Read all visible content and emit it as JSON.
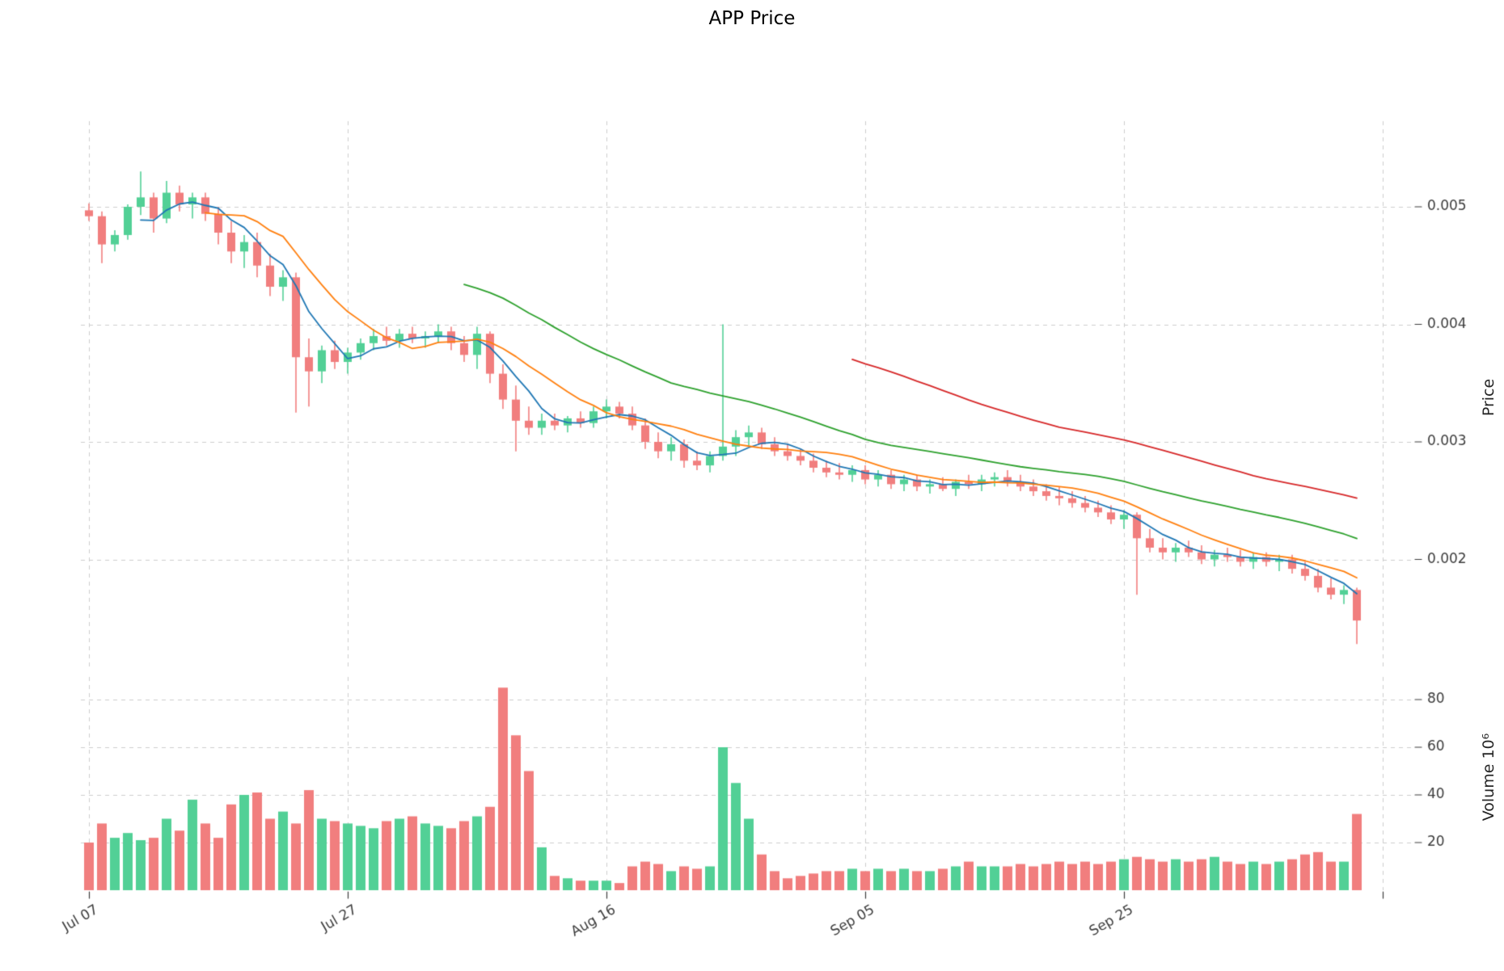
{
  "title": "APP Price",
  "axes": {
    "price_label": "Price",
    "volume_label": "Volume  10⁶",
    "price_ticks": [
      {
        "value": 0.002,
        "label": "0.002"
      },
      {
        "value": 0.003,
        "label": "0.003"
      },
      {
        "value": 0.004,
        "label": "0.004"
      },
      {
        "value": 0.005,
        "label": "0.005"
      }
    ],
    "volume_ticks": [
      {
        "value": 20,
        "label": "20"
      },
      {
        "value": 40,
        "label": "40"
      },
      {
        "value": 60,
        "label": "60"
      },
      {
        "value": 80,
        "label": "80"
      }
    ],
    "x_ticks": [
      {
        "index": 0,
        "label": "Jul 07"
      },
      {
        "index": 20,
        "label": "Jul 27"
      },
      {
        "index": 40,
        "label": "Aug 16"
      },
      {
        "index": 60,
        "label": "Sep 05"
      },
      {
        "index": 80,
        "label": "Sep 25"
      },
      {
        "index": 100,
        "label": ""
      }
    ]
  },
  "colors": {
    "up": "#52d096",
    "down": "#f17e7e",
    "grid": "#cccccc",
    "tick_text": "#3c3c3c",
    "ma_short": "#1f77b4",
    "ma_mid": "#ff7f0e",
    "ma_long": "#2ca02c",
    "ma_longest": "#d62728"
  },
  "chart_data": {
    "type": "candlestick+volume",
    "title": "APP Price",
    "ylabel_price": "Price",
    "ylabel_volume": "Volume  10⁶",
    "grid": true,
    "ylim_price": [
      0.0011,
      0.0057
    ],
    "ylim_volume": [
      0,
      90
    ],
    "x": [
      "Jul 07",
      "Jul 08",
      "Jul 09",
      "Jul 10",
      "Jul 11",
      "Jul 12",
      "Jul 13",
      "Jul 14",
      "Jul 15",
      "Jul 16",
      "Jul 17",
      "Jul 18",
      "Jul 19",
      "Jul 20",
      "Jul 21",
      "Jul 22",
      "Jul 23",
      "Jul 24",
      "Jul 25",
      "Jul 26",
      "Jul 27",
      "Jul 28",
      "Jul 29",
      "Jul 30",
      "Jul 31",
      "Aug 01",
      "Aug 02",
      "Aug 03",
      "Aug 04",
      "Aug 05",
      "Aug 06",
      "Aug 07",
      "Aug 08",
      "Aug 09",
      "Aug 10",
      "Aug 11",
      "Aug 12",
      "Aug 13",
      "Aug 14",
      "Aug 15",
      "Aug 16",
      "Aug 17",
      "Aug 18",
      "Aug 19",
      "Aug 20",
      "Aug 21",
      "Aug 22",
      "Aug 23",
      "Aug 24",
      "Aug 25",
      "Aug 26",
      "Aug 27",
      "Aug 28",
      "Aug 29",
      "Aug 30",
      "Aug 31",
      "Sep 01",
      "Sep 02",
      "Sep 03",
      "Sep 04",
      "Sep 05",
      "Sep 06",
      "Sep 07",
      "Sep 08",
      "Sep 09",
      "Sep 10",
      "Sep 11",
      "Sep 12",
      "Sep 13",
      "Sep 14",
      "Sep 15",
      "Sep 16",
      "Sep 17",
      "Sep 18",
      "Sep 19",
      "Sep 20",
      "Sep 21",
      "Sep 22",
      "Sep 23",
      "Sep 24",
      "Sep 25",
      "Sep 26",
      "Sep 27",
      "Sep 28",
      "Sep 29",
      "Sep 30",
      "Oct 01",
      "Oct 02",
      "Oct 03",
      "Oct 04",
      "Oct 05",
      "Oct 06",
      "Oct 07",
      "Oct 08",
      "Oct 09",
      "Oct 10",
      "Oct 11",
      "Oct 12",
      "Oct 13"
    ],
    "ohlc": {
      "open": [
        0.00497,
        0.00492,
        0.00468,
        0.00476,
        0.005,
        0.00508,
        0.0049,
        0.00512,
        0.00502,
        0.00508,
        0.00494,
        0.00478,
        0.00462,
        0.0047,
        0.0045,
        0.00432,
        0.0044,
        0.00372,
        0.0036,
        0.00378,
        0.00368,
        0.00376,
        0.00384,
        0.0039,
        0.00386,
        0.00392,
        0.00388,
        0.0039,
        0.00394,
        0.00384,
        0.00374,
        0.00392,
        0.00358,
        0.00336,
        0.00318,
        0.00312,
        0.00318,
        0.00314,
        0.0032,
        0.00316,
        0.00326,
        0.0033,
        0.00324,
        0.00314,
        0.003,
        0.00292,
        0.00298,
        0.00284,
        0.0028,
        0.00288,
        0.00296,
        0.00304,
        0.00308,
        0.00298,
        0.00292,
        0.00288,
        0.00284,
        0.00278,
        0.00274,
        0.00272,
        0.00276,
        0.00268,
        0.00272,
        0.00264,
        0.00268,
        0.00262,
        0.00264,
        0.0026,
        0.00266,
        0.00264,
        0.00268,
        0.0027,
        0.00266,
        0.00262,
        0.00258,
        0.00254,
        0.00252,
        0.00248,
        0.00244,
        0.0024,
        0.00234,
        0.00238,
        0.00218,
        0.0021,
        0.00206,
        0.0021,
        0.00206,
        0.002,
        0.00204,
        0.00202,
        0.00198,
        0.00202,
        0.00198,
        0.002,
        0.00192,
        0.00186,
        0.00176,
        0.0017,
        0.00174
      ],
      "high": [
        0.00503,
        0.00496,
        0.0048,
        0.00502,
        0.0053,
        0.00512,
        0.00522,
        0.00518,
        0.00512,
        0.00512,
        0.005,
        0.00488,
        0.00476,
        0.00478,
        0.0046,
        0.00446,
        0.00444,
        0.00388,
        0.00382,
        0.00386,
        0.0038,
        0.00388,
        0.00396,
        0.00398,
        0.00396,
        0.00398,
        0.00394,
        0.004,
        0.00398,
        0.0039,
        0.00398,
        0.00394,
        0.00366,
        0.00348,
        0.0033,
        0.00324,
        0.00324,
        0.00322,
        0.00326,
        0.0033,
        0.00336,
        0.00334,
        0.0033,
        0.0032,
        0.00308,
        0.00304,
        0.00302,
        0.00292,
        0.00292,
        0.004,
        0.0031,
        0.00314,
        0.00312,
        0.00304,
        0.00298,
        0.00294,
        0.0029,
        0.00284,
        0.00282,
        0.0028,
        0.0028,
        0.00276,
        0.00276,
        0.00272,
        0.00272,
        0.00268,
        0.0027,
        0.00268,
        0.00272,
        0.00272,
        0.00274,
        0.00276,
        0.00272,
        0.00268,
        0.00264,
        0.00262,
        0.00258,
        0.00254,
        0.0025,
        0.00246,
        0.00242,
        0.0024,
        0.00226,
        0.00218,
        0.00214,
        0.00216,
        0.00212,
        0.00208,
        0.0021,
        0.00208,
        0.00206,
        0.00206,
        0.00204,
        0.00204,
        0.00198,
        0.00192,
        0.00184,
        0.00178,
        0.00176
      ],
      "low": [
        0.00488,
        0.00452,
        0.00462,
        0.00472,
        0.00493,
        0.00478,
        0.00486,
        0.00496,
        0.0049,
        0.00488,
        0.00468,
        0.00452,
        0.00448,
        0.0044,
        0.00424,
        0.0042,
        0.00325,
        0.0033,
        0.0035,
        0.00362,
        0.00358,
        0.0037,
        0.00378,
        0.00382,
        0.0038,
        0.00384,
        0.0038,
        0.00384,
        0.00378,
        0.00368,
        0.00362,
        0.0035,
        0.00328,
        0.00292,
        0.00306,
        0.00306,
        0.0031,
        0.00308,
        0.00312,
        0.00312,
        0.0032,
        0.0032,
        0.0031,
        0.00294,
        0.00286,
        0.00284,
        0.00278,
        0.00276,
        0.00274,
        0.00284,
        0.00288,
        0.00296,
        0.00294,
        0.00288,
        0.00284,
        0.0028,
        0.00274,
        0.0027,
        0.00268,
        0.00266,
        0.00264,
        0.00262,
        0.0026,
        0.00258,
        0.00258,
        0.00256,
        0.00258,
        0.00254,
        0.0026,
        0.00258,
        0.00262,
        0.00262,
        0.00258,
        0.00254,
        0.0025,
        0.00246,
        0.00244,
        0.0024,
        0.00236,
        0.0023,
        0.00226,
        0.0017,
        0.00206,
        0.002,
        0.00198,
        0.00202,
        0.00196,
        0.00194,
        0.00198,
        0.00194,
        0.00192,
        0.00194,
        0.0019,
        0.00188,
        0.00182,
        0.00172,
        0.00166,
        0.00162,
        0.00128
      ],
      "close": [
        0.00492,
        0.00468,
        0.00476,
        0.005,
        0.00508,
        0.0049,
        0.00512,
        0.00502,
        0.00508,
        0.00494,
        0.00478,
        0.00462,
        0.0047,
        0.0045,
        0.00432,
        0.0044,
        0.00372,
        0.0036,
        0.00378,
        0.00368,
        0.00376,
        0.00384,
        0.0039,
        0.00386,
        0.00392,
        0.00388,
        0.0039,
        0.00394,
        0.00384,
        0.00374,
        0.00392,
        0.00358,
        0.00336,
        0.00318,
        0.00312,
        0.00318,
        0.00314,
        0.0032,
        0.00316,
        0.00326,
        0.0033,
        0.00324,
        0.00314,
        0.003,
        0.00292,
        0.00298,
        0.00284,
        0.0028,
        0.00288,
        0.00296,
        0.00304,
        0.00308,
        0.00298,
        0.00292,
        0.00288,
        0.00284,
        0.00278,
        0.00274,
        0.00272,
        0.00276,
        0.00268,
        0.00272,
        0.00264,
        0.00268,
        0.00262,
        0.00264,
        0.0026,
        0.00266,
        0.00264,
        0.00268,
        0.0027,
        0.00266,
        0.00262,
        0.00258,
        0.00254,
        0.00252,
        0.00248,
        0.00244,
        0.0024,
        0.00234,
        0.00238,
        0.00218,
        0.0021,
        0.00206,
        0.0021,
        0.00206,
        0.002,
        0.00204,
        0.00202,
        0.00198,
        0.00202,
        0.00198,
        0.002,
        0.00192,
        0.00186,
        0.00176,
        0.0017,
        0.00174,
        0.00148
      ]
    },
    "volume_millions": [
      20,
      28,
      22,
      24,
      21,
      22,
      30,
      25,
      38,
      28,
      22,
      36,
      40,
      41,
      30,
      33,
      28,
      42,
      30,
      29,
      28,
      27,
      26,
      29,
      30,
      31,
      28,
      27,
      26,
      29,
      31,
      35,
      85,
      65,
      50,
      18,
      6,
      5,
      4,
      4,
      4,
      3,
      10,
      12,
      11,
      8,
      10,
      9,
      10,
      60,
      45,
      30,
      15,
      8,
      5,
      6,
      7,
      8,
      8,
      9,
      8,
      9,
      8,
      9,
      8,
      8,
      9,
      10,
      12,
      10,
      10,
      10,
      11,
      10,
      11,
      12,
      11,
      12,
      11,
      12,
      13,
      14,
      13,
      12,
      13,
      12,
      13,
      14,
      12,
      11,
      12,
      11,
      12,
      13,
      15,
      16,
      12,
      12,
      32
    ],
    "moving_averages": [
      {
        "name": "MA5",
        "window": 5,
        "color": "#1f77b4"
      },
      {
        "name": "MA10",
        "window": 10,
        "color": "#ff7f0e"
      },
      {
        "name": "MA30",
        "window": 30,
        "color": "#2ca02c"
      },
      {
        "name": "MA60",
        "window": 60,
        "color": "#d62728"
      }
    ],
    "legend_position": "none"
  }
}
